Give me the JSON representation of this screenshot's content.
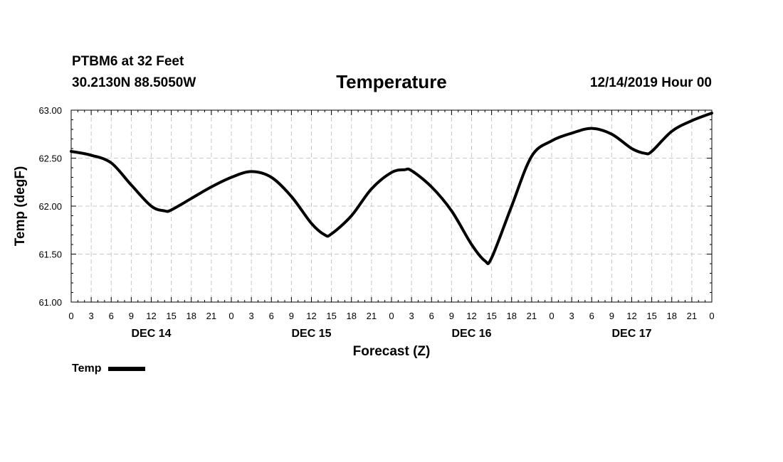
{
  "header": {
    "station": "PTBM6 at 32 Feet",
    "coords": "30.2130N 88.5050W",
    "title": "Temperature",
    "datetime": "12/14/2019 Hour 00"
  },
  "chart_data": {
    "type": "line",
    "title": "Temperature",
    "xlabel": "Forecast (Z)",
    "ylabel": "Temp (degF)",
    "ylim": [
      61.0,
      63.0
    ],
    "yticks": [
      "61.00",
      "61.50",
      "62.00",
      "62.50",
      "63.00"
    ],
    "xlim_hours": [
      0,
      96
    ],
    "x_tick_labels": [
      "0",
      "3",
      "6",
      "9",
      "12",
      "15",
      "18",
      "21",
      "0",
      "3",
      "6",
      "9",
      "12",
      "15",
      "18",
      "21",
      "0",
      "3",
      "6",
      "9",
      "12",
      "15",
      "18",
      "21",
      "0",
      "3",
      "6",
      "9",
      "12",
      "15",
      "18",
      "21",
      "0"
    ],
    "day_labels": [
      "DEC 14",
      "DEC 15",
      "DEC 16",
      "DEC 17"
    ],
    "grid": true,
    "legend": "bottom-left",
    "series": [
      {
        "name": "Temp",
        "color": "#000000",
        "x_hours": [
          0,
          3,
          6,
          9,
          12,
          14,
          15,
          18,
          21,
          24,
          27,
          30,
          33,
          36,
          38,
          39,
          42,
          45,
          48,
          50,
          51,
          54,
          57,
          60,
          62,
          63,
          66,
          69,
          72,
          75,
          78,
          81,
          84,
          86,
          87,
          90,
          93,
          96
        ],
        "values": [
          62.57,
          62.53,
          62.45,
          62.22,
          62.0,
          61.95,
          61.96,
          62.08,
          62.2,
          62.3,
          62.36,
          62.3,
          62.1,
          61.82,
          61.7,
          61.71,
          61.9,
          62.18,
          62.35,
          62.38,
          62.37,
          62.2,
          61.95,
          61.6,
          61.43,
          61.46,
          62.0,
          62.52,
          62.68,
          62.76,
          62.81,
          62.75,
          62.6,
          62.55,
          62.57,
          62.78,
          62.89,
          62.97
        ]
      }
    ]
  },
  "legend": {
    "label": "Temp"
  }
}
